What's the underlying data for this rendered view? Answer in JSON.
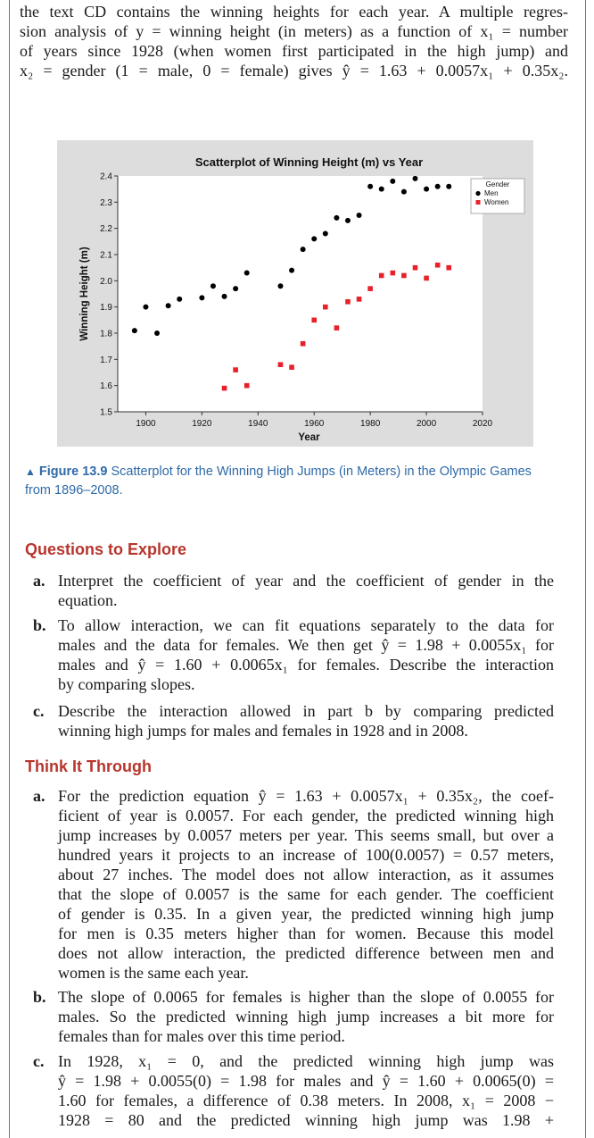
{
  "intro_lines": [
    "the text CD contains the winning heights for each year. A multiple regres-",
    "sion analysis of y = winning height (in meters) as a function of x₁ = number",
    "of years since 1928 (when women first participated in the high jump) and",
    "x₂ = gender (1 = male, 0 = female) gives ŷ = 1.63 + 0.0057x₁ + 0.35x₂."
  ],
  "chart_data": {
    "type": "scatter",
    "title": "Scatterplot of Winning Height (m) vs Year",
    "xlabel": "Year",
    "ylabel": "Winning Height (m)",
    "xlim": [
      1890,
      2020
    ],
    "ylim": [
      1.5,
      2.4
    ],
    "x_ticks": [
      1900,
      1920,
      1940,
      1960,
      1980,
      2000,
      2020
    ],
    "y_ticks": [
      1.5,
      1.6,
      1.7,
      1.8,
      1.9,
      2.0,
      2.1,
      2.2,
      2.3,
      2.4
    ],
    "grid": false,
    "legend": {
      "title": "Gender",
      "placement": "top-right"
    },
    "series": [
      {
        "name": "Men",
        "color": "#000000",
        "marker": "circle",
        "x": [
          1896,
          1900,
          1904,
          1908,
          1912,
          1920,
          1924,
          1928,
          1932,
          1936,
          1948,
          1952,
          1956,
          1960,
          1964,
          1968,
          1972,
          1976,
          1980,
          1984,
          1988,
          1992,
          1996,
          2000,
          2004,
          2008
        ],
        "y": [
          1.81,
          1.9,
          1.8,
          1.905,
          1.93,
          1.935,
          1.98,
          1.94,
          1.97,
          2.03,
          1.98,
          2.04,
          2.12,
          2.16,
          2.18,
          2.24,
          2.23,
          2.25,
          2.36,
          2.35,
          2.38,
          2.34,
          2.39,
          2.35,
          2.36,
          2.36
        ]
      },
      {
        "name": "Women",
        "color": "#e8202a",
        "marker": "square",
        "x": [
          1928,
          1932,
          1936,
          1948,
          1952,
          1956,
          1960,
          1964,
          1968,
          1972,
          1976,
          1980,
          1984,
          1988,
          1992,
          1996,
          2000,
          2004,
          2008
        ],
        "y": [
          1.59,
          1.66,
          1.6,
          1.68,
          1.67,
          1.76,
          1.85,
          1.9,
          1.82,
          1.92,
          1.93,
          1.97,
          2.02,
          2.03,
          2.02,
          2.05,
          2.01,
          2.06,
          2.05
        ]
      }
    ]
  },
  "caption": {
    "marker": "▲",
    "label": "Figure 13.9",
    "text": " Scatterplot for the Winning High Jumps (in Meters) in the Olympic Games from 1896–2008."
  },
  "questions_heading": "Questions to Explore",
  "questions": [
    {
      "label": "a.",
      "lines": [
        "Interpret the coefficient of year and the coefficient of gender in the",
        "equation."
      ]
    },
    {
      "label": "b.",
      "lines": [
        "To allow interaction, we can fit equations separately to the data for",
        "males and the data for females. We then get ŷ = 1.98 + 0.0055x₁ for",
        "males and ŷ = 1.60 + 0.0065x₁ for females. Describe the interaction",
        "by comparing slopes."
      ]
    },
    {
      "label": "c.",
      "lines": [
        "Describe the interaction allowed in part b by comparing predicted",
        "winning high jumps for males and females in 1928 and in 2008."
      ]
    }
  ],
  "think_heading": "Think It Through",
  "answers": [
    {
      "label": "a.",
      "lines": [
        "For the prediction equation ŷ = 1.63 + 0.0057x₁ + 0.35x₂, the coef-",
        "ficient of year is 0.0057. For each gender, the predicted winning high",
        "jump increases by 0.0057 meters per year. This seems small, but over a",
        "hundred years it projects to an increase of 100(0.0057) = 0.57 meters,",
        "about 27 inches. The model does not allow interaction, as it assumes",
        "that the slope of 0.0057 is the same for each gender. The coefficient",
        "of gender is 0.35. In a given year, the predicted winning high jump",
        "for men is 0.35 meters higher than for women. Because this model",
        "does not allow interaction, the predicted difference between men and",
        "women is the same each year."
      ]
    },
    {
      "label": "b.",
      "lines": [
        "The slope of 0.0065 for females is higher than the slope of 0.0055 for",
        "males. So the predicted winning high jump increases a bit more for",
        "females than for males over this time period."
      ]
    },
    {
      "label": "c.",
      "lines": [
        "In 1928, x₁ = 0, and the predicted winning high jump was",
        "ŷ = 1.98 + 0.0055(0) = 1.98 for males and ŷ = 1.60 + 0.0065(0) =",
        "1.60 for females, a difference of 0.38 meters. In 2008, x₁ = 2008 −",
        "1928 = 80 and the predicted winning high jump was 1.98 +"
      ]
    }
  ]
}
